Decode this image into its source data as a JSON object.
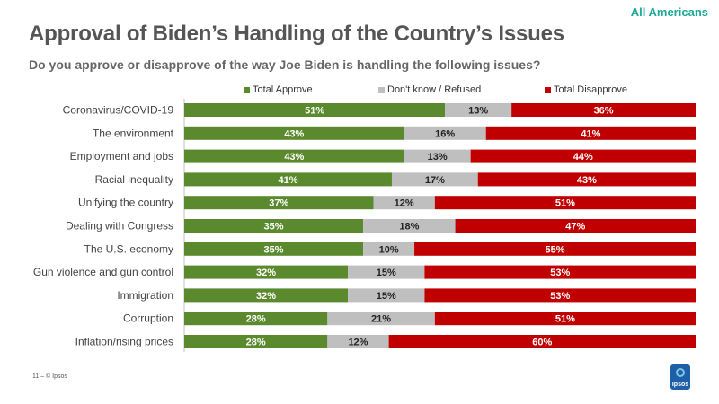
{
  "tag": "All Americans",
  "title": "Approval of Biden’s Handling of the Country’s Issues",
  "subtitle": "Do you approve or disapprove of the way Joe Biden is handling the following issues?",
  "footer": "11 – © Ipsos",
  "logo_text": "Ipsos",
  "colors": {
    "approve": "#5b8a2e",
    "dontknow": "#bfbfbf",
    "disapprove": "#c00000"
  },
  "chart_data": {
    "type": "bar",
    "orientation": "horizontal",
    "stacked": true,
    "categories": [
      "Coronavirus/COVID-19",
      "The environment",
      "Employment and jobs",
      "Racial inequality",
      "Unifying the country",
      "Dealing with Congress",
      "The U.S. economy",
      "Gun violence and gun control",
      "Immigration",
      "Corruption",
      "Inflation/rising prices"
    ],
    "series": [
      {
        "name": "Total Approve",
        "color": "#5b8a2e",
        "values": [
          51,
          43,
          43,
          41,
          37,
          35,
          35,
          32,
          32,
          28,
          28
        ]
      },
      {
        "name": "Don't know / Refused",
        "color": "#bfbfbf",
        "values": [
          13,
          16,
          13,
          17,
          12,
          18,
          10,
          15,
          15,
          21,
          12
        ]
      },
      {
        "name": "Total Disapprove",
        "color": "#c00000",
        "values": [
          36,
          41,
          44,
          43,
          51,
          47,
          55,
          53,
          53,
          51,
          60
        ]
      }
    ],
    "value_suffix": "%",
    "legend_position": "top",
    "grid": false
  }
}
